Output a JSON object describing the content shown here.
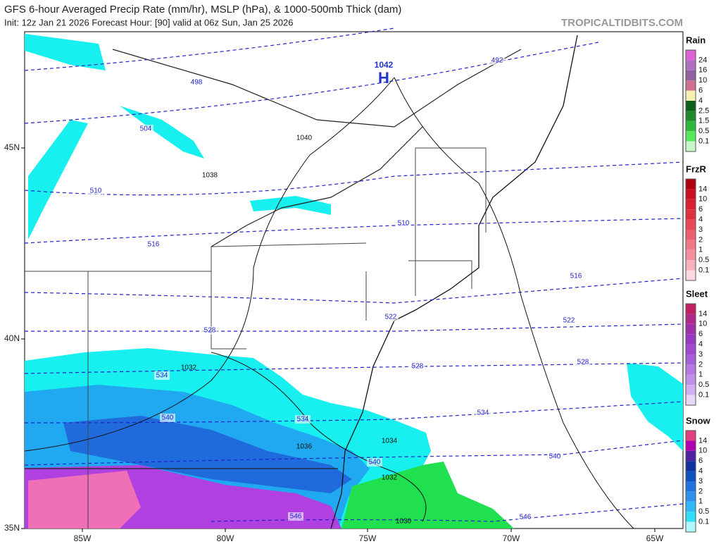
{
  "header": {
    "title": "GFS 6-hour Averaged Precip Rate (mm/hr), MSLP (hPa), & 1000-500mb Thick (dam)",
    "subtitle": "Init: 12z Jan 21 2026   Forecast Hour: [90]   valid at 06z Sun, Jan 25 2026",
    "site": "TROPICALTIDBITS.COM"
  },
  "axes": {
    "lat": [
      "45N",
      "40N",
      "35N"
    ],
    "lon": [
      "85W",
      "80W",
      "75W",
      "70W",
      "65W"
    ]
  },
  "legends": [
    {
      "title": "Rain",
      "labels": [
        24,
        16,
        10,
        6,
        4,
        2.5,
        1.5,
        0.5,
        0.1
      ],
      "colors": [
        "#e060d8",
        "#b070c0",
        "#9060a0",
        "#d07090",
        "#f8f0b0",
        "#0d5e18",
        "#1e8a2a",
        "#2fb83c",
        "#55e85a",
        "#c8f8c8"
      ]
    },
    {
      "title": "FrzR",
      "labels": [
        14,
        10,
        6,
        4,
        3,
        2,
        1,
        0.5,
        0.1
      ],
      "colors": [
        "#b00010",
        "#c81020",
        "#d82030",
        "#e03040",
        "#e84858",
        "#ee6070",
        "#f27888",
        "#f690a0",
        "#f8b0bc",
        "#fcd8e0"
      ]
    },
    {
      "title": "Sleet",
      "labels": [
        14,
        10,
        6,
        4,
        3,
        2,
        1,
        0.5,
        0.1
      ],
      "colors": [
        "#c02060",
        "#b02888",
        "#a030a8",
        "#9838c0",
        "#a048d0",
        "#a860d8",
        "#b478e0",
        "#c090e8",
        "#d0b0f0",
        "#e8d8f8"
      ]
    },
    {
      "title": "Snow",
      "labels": [
        14,
        10,
        6,
        4,
        3,
        2,
        1,
        0.5,
        0.1
      ],
      "colors": [
        "#e04080",
        "#b000b0",
        "#5020a0",
        "#1030a0",
        "#1050c0",
        "#2070e0",
        "#3090f0",
        "#30b8f8",
        "#30e0f8",
        "#b0f8fc"
      ]
    }
  ],
  "thickness_labels": [
    492,
    498,
    504,
    510,
    510,
    516,
    516,
    522,
    522,
    528,
    528,
    528,
    534,
    534,
    534,
    540,
    540,
    540,
    546,
    546
  ],
  "pressure_labels": [
    1040,
    1038,
    1032,
    1036,
    1034,
    1032,
    1030
  ],
  "high": {
    "value": 1042,
    "label": "H"
  }
}
